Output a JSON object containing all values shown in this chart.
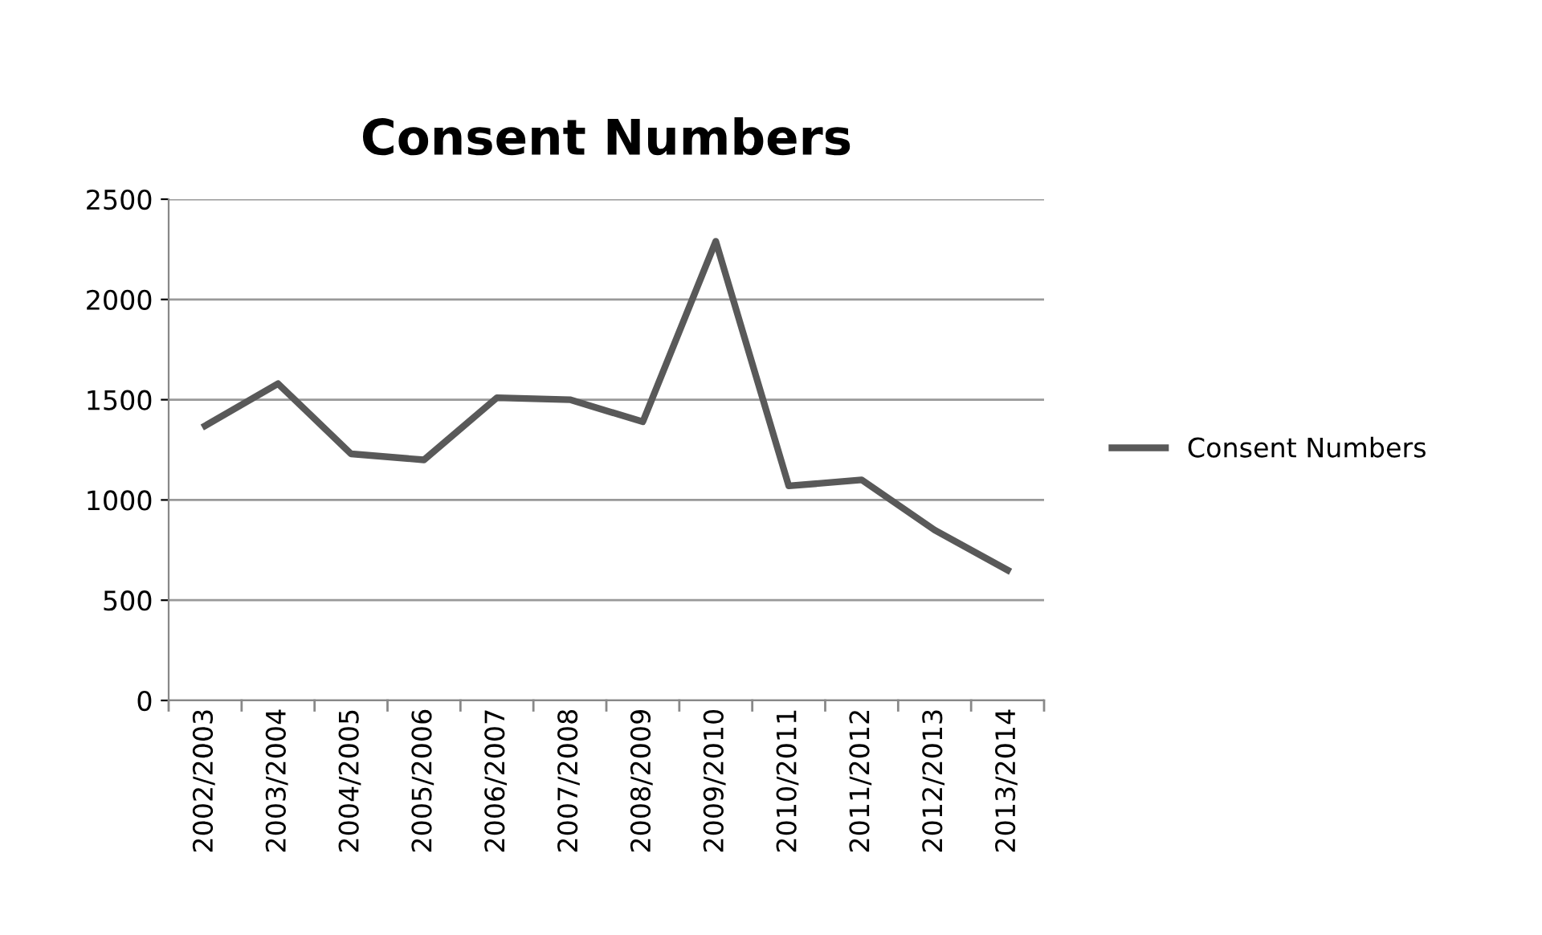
{
  "chart_data": {
    "type": "line",
    "title": "Consent Numbers",
    "categories": [
      "2002/2003",
      "2003/2004",
      "2004/2005",
      "2005/2006",
      "2006/2007",
      "2007/2008",
      "2008/2009",
      "2009/2010",
      "2010/2011",
      "2011/2012",
      "2012/2013",
      "2013/2014"
    ],
    "series": [
      {
        "name": "Consent Numbers",
        "color": "#595959",
        "values": [
          1370,
          1580,
          1230,
          1200,
          1510,
          1500,
          1390,
          2290,
          1070,
          1100,
          850,
          650
        ]
      }
    ],
    "ylim": [
      0,
      2500
    ],
    "yticks": [
      0,
      500,
      1000,
      1500,
      2000,
      2500
    ],
    "grid": "y",
    "legend": "right",
    "marker": "none",
    "line_style": "solid"
  }
}
